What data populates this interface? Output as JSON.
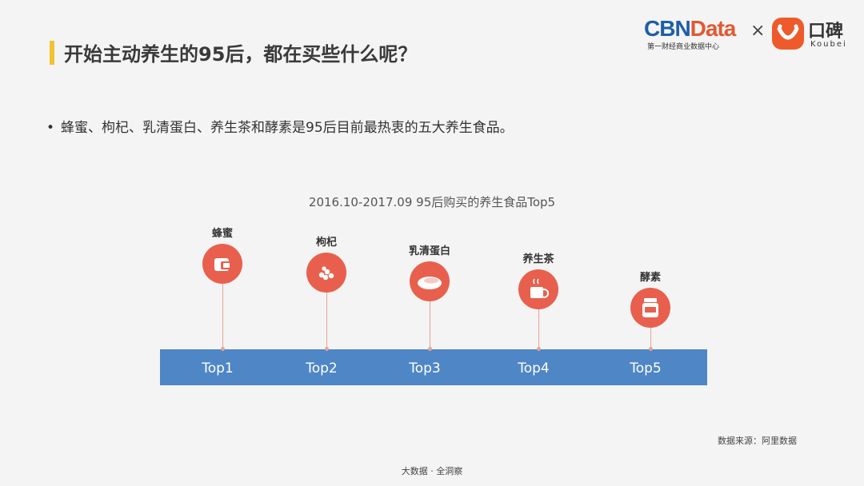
{
  "title": "开始主动养生的95后，都在买些什么呢？",
  "logo": {
    "cbn_prefix": "CBN",
    "cbn_suffix": "Data",
    "cbn_subtitle": "第一财经商业数据中心",
    "separator": "×",
    "koubei_name": "口碑",
    "koubei_sub": "Koubei",
    "colors": {
      "cbn_blue": "#1d5ea8",
      "cbn_orange": "#e05a30",
      "koubei_orange": "#ee5a2b"
    }
  },
  "bullet": {
    "dot": "•",
    "text": "蜂蜜、枸杞、乳清蛋白、养生茶和酵素是95后目前最热衷的五大养生食品。"
  },
  "chart_data": {
    "type": "timeline",
    "title": "2016.10-2017.09 95后购买的养生食品Top5",
    "items": [
      {
        "rank": "Top1",
        "name": "蜂蜜",
        "icon": "honey-jar-icon"
      },
      {
        "rank": "Top2",
        "name": "枸杞",
        "icon": "goji-berries-icon"
      },
      {
        "rank": "Top3",
        "name": "乳清蛋白",
        "icon": "protein-powder-icon"
      },
      {
        "rank": "Top4",
        "name": "养生茶",
        "icon": "tea-cup-icon"
      },
      {
        "rank": "Top5",
        "name": "酵素",
        "icon": "enzyme-jar-icon"
      }
    ],
    "colors": {
      "bar": "#4f86c6",
      "circle": "#e8604d",
      "stem": "#e8a394"
    }
  },
  "source": "数据来源：阿里数据",
  "footer": "大数据 · 全洞察"
}
